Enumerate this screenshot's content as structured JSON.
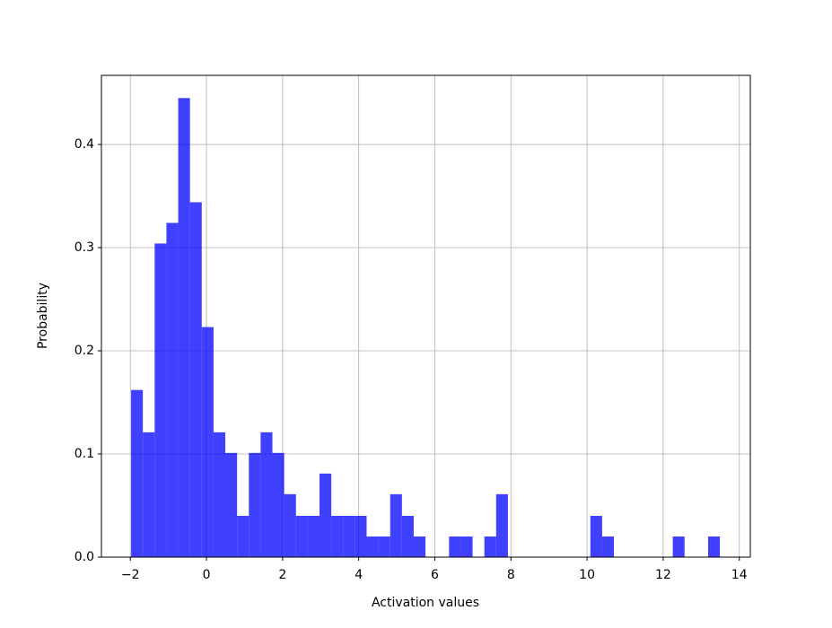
{
  "chart_data": {
    "type": "histogram",
    "x_label": "Activation values",
    "y_label": "Probability",
    "bins": [
      -1.98,
      -1.671,
      -1.361,
      -1.052,
      -0.742,
      -0.433,
      -0.124,
      0.186,
      0.495,
      0.805,
      1.114,
      1.423,
      1.733,
      2.042,
      2.352,
      2.661,
      2.97,
      3.28,
      3.589,
      3.899,
      4.208,
      4.517,
      4.827,
      5.136,
      5.446,
      5.755,
      6.064,
      6.374,
      6.683,
      6.993,
      7.302,
      7.611,
      7.921,
      8.23,
      8.54,
      8.849,
      9.158,
      9.468,
      9.777,
      10.087,
      10.396,
      10.705,
      11.015,
      11.324,
      11.634,
      11.943,
      12.252,
      12.562,
      12.871,
      13.181,
      13.49
    ],
    "values": [
      0.162,
      0.121,
      0.304,
      0.324,
      0.445,
      0.344,
      0.223,
      0.121,
      0.101,
      0.04,
      0.101,
      0.121,
      0.101,
      0.061,
      0.04,
      0.04,
      0.081,
      0.04,
      0.04,
      0.04,
      0.02,
      0.02,
      0.061,
      0.04,
      0.02,
      0,
      0,
      0.02,
      0.02,
      0,
      0.02,
      0.061,
      0,
      0,
      0,
      0,
      0,
      0,
      0,
      0.04,
      0.02,
      0,
      0,
      0,
      0,
      0,
      0.02,
      0,
      0,
      0.02
    ],
    "color": "#0000ff",
    "xlim": [
      -2.76,
      14.29
    ],
    "ylim": [
      0,
      0.467
    ],
    "xticks": [
      {
        "value": -2,
        "label": "−2"
      },
      0,
      2,
      4,
      6,
      8,
      10,
      12,
      14
    ],
    "yticks": [
      {
        "value": 0,
        "label": "0.0"
      },
      0.1,
      0.2,
      0.3,
      0.4
    ],
    "grid": true
  }
}
